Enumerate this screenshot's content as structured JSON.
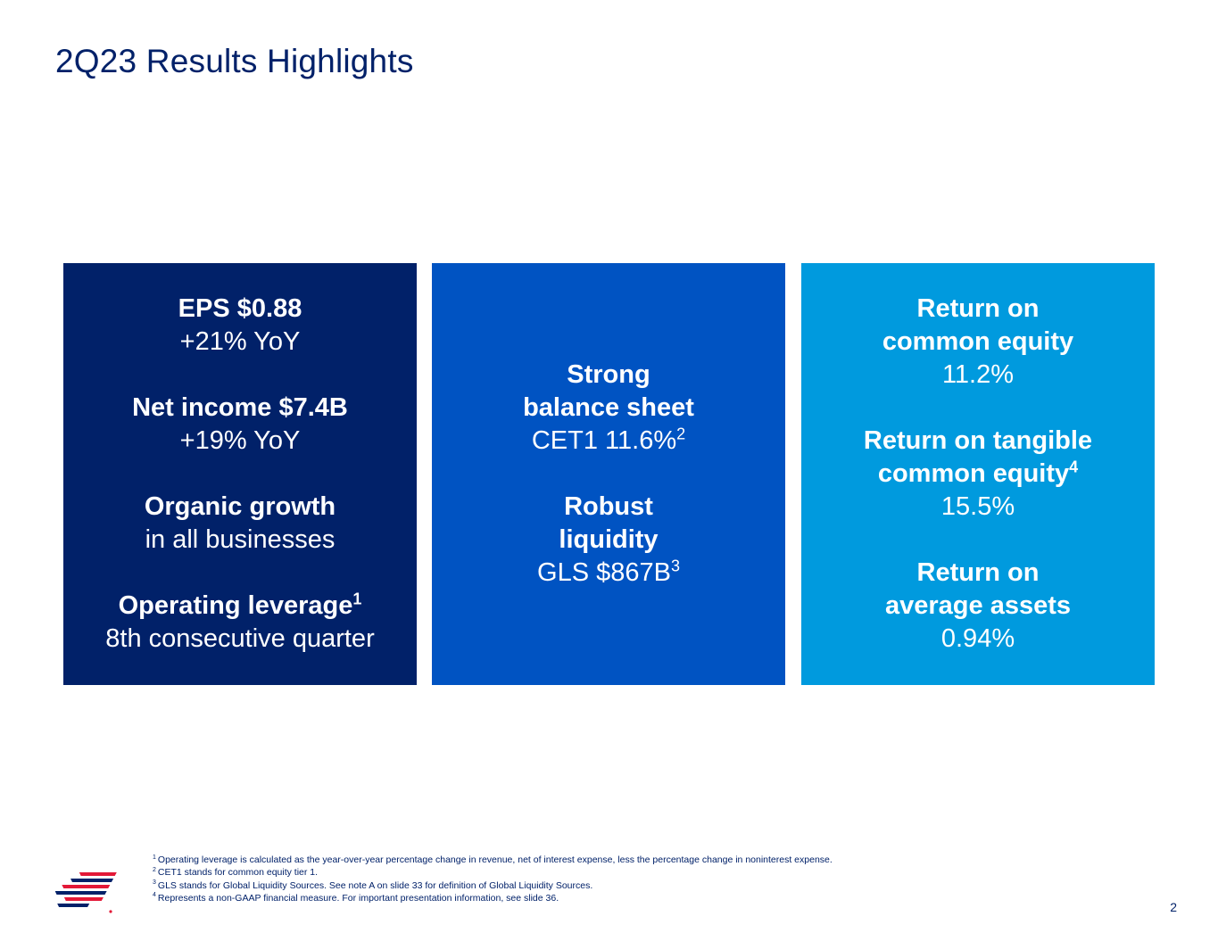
{
  "title": "2Q23 Results Highlights",
  "panels": [
    {
      "color": "#012169",
      "groups": [
        {
          "heading": "EPS $0.88",
          "sub": "+21% YoY"
        },
        {
          "heading": "Net income $7.4B",
          "sub": "+19% YoY"
        },
        {
          "heading": "Organic growth",
          "sub": "in all businesses"
        },
        {
          "heading": "Operating leverage",
          "heading_sup": "1",
          "sub": "8th consecutive quarter"
        }
      ]
    },
    {
      "color": "#0053c2",
      "groups": [
        {
          "heading_line1": "Strong",
          "heading_line2": "balance sheet",
          "sub": "CET1 11.6%",
          "sub_sup": "2"
        },
        {
          "heading_line1": "Robust",
          "heading_line2": "liquidity",
          "sub": "GLS $867B",
          "sub_sup": "3"
        }
      ]
    },
    {
      "color": "#009ade",
      "groups": [
        {
          "heading_line1": "Return on",
          "heading_line2": "common equity",
          "sub": "11.2%"
        },
        {
          "heading_line1": "Return on tangible",
          "heading_line2": "common equity",
          "heading_sup": "4",
          "sub": "15.5%"
        },
        {
          "heading_line1": "Return on",
          "heading_line2": "average assets",
          "sub": "0.94%"
        }
      ]
    }
  ],
  "footnotes": [
    {
      "num": "1",
      "text": "Operating leverage is calculated as the year-over-year percentage change in revenue, net of interest expense, less the percentage change in noninterest expense."
    },
    {
      "num": "2",
      "text": "CET1 stands for common equity tier 1."
    },
    {
      "num": "3",
      "text": "GLS stands for Global Liquidity Sources. See note A on slide 33 for definition of Global Liquidity Sources."
    },
    {
      "num": "4",
      "text": "Represents a non-GAAP financial measure. For important presentation information, see slide 36."
    }
  ],
  "logo": {
    "icon": "bank-flag-logo-icon",
    "colors": [
      "#012169",
      "#e31837"
    ]
  },
  "page_number": "2"
}
